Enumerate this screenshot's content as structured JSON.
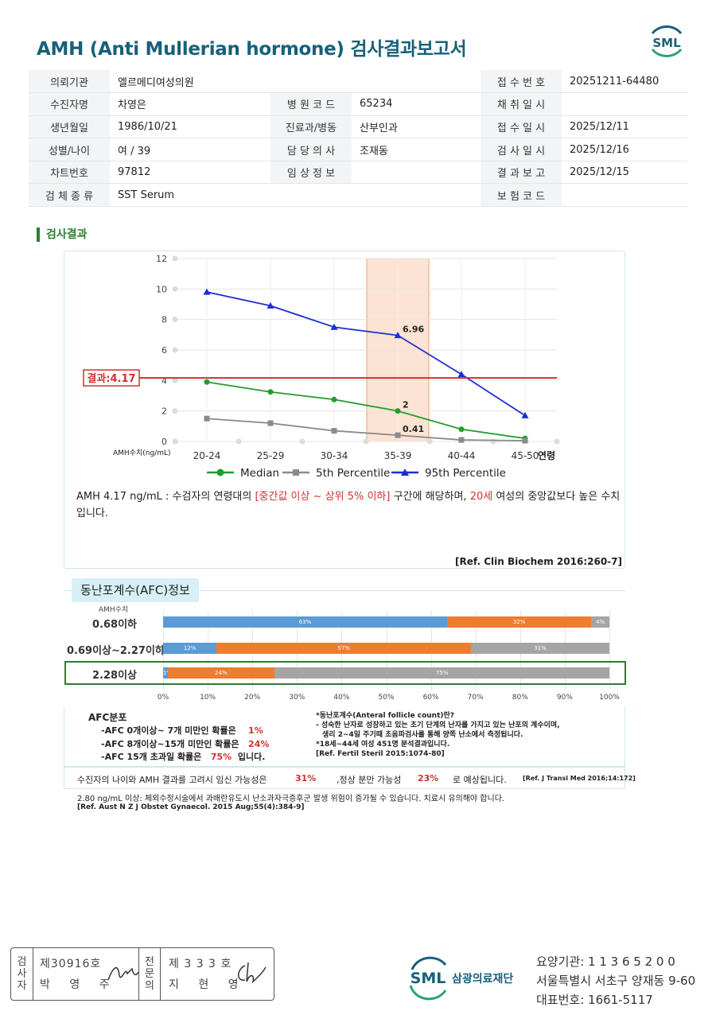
{
  "title": "AMH (Anti Mullerian hormone) 검사결과보고서",
  "logo_text": "SML",
  "info_rows": [
    [
      {
        "label": "의뢰기관",
        "value": "엘르메디여성의원",
        "span": true
      },
      {
        "label": "접 수 번 호",
        "value": "20251211-64480"
      }
    ],
    [
      {
        "label": "수진자명",
        "value": "차영은"
      },
      {
        "label": "병 원 코 드",
        "value": "65234"
      },
      {
        "label": "채 취 일 시",
        "value": ""
      }
    ],
    [
      {
        "label": "생년월일",
        "value": "1986/10/21"
      },
      {
        "label": "진료과/병동",
        "value": "산부인과"
      },
      {
        "label": "접 수 일 시",
        "value": "2025/12/11"
      }
    ],
    [
      {
        "label": "성별/나이",
        "value": "여 / 39"
      },
      {
        "label": "담 당 의 사",
        "value": "조재동"
      },
      {
        "label": "검 사 일 시",
        "value": "2025/12/16"
      }
    ],
    [
      {
        "label": "차트번호",
        "value": "97812"
      },
      {
        "label": "임 상 정 보",
        "value": ""
      },
      {
        "label": "결 과 보 고",
        "value": "2025/12/15"
      }
    ],
    [
      {
        "label": "검 체 종 류",
        "value": "SST Serum",
        "span": true
      },
      {
        "label": "보 험 코 드",
        "value": ""
      }
    ]
  ],
  "section_title": "검사결과",
  "chart_data": [
    {
      "type": "line",
      "categories": [
        "20-24",
        "25-29",
        "30-34",
        "35-39",
        "40-44",
        "45-50"
      ],
      "x_unit_label": "연령",
      "ylabel": "AMH수치(ng/mL)",
      "ylim": [
        0,
        12
      ],
      "yticks": [
        0,
        2,
        4,
        6,
        8,
        10,
        12
      ],
      "highlight_category": "35-39",
      "result_line": {
        "label": "결과:4.17",
        "value": 4.17,
        "color": "#d32f2f"
      },
      "series": [
        {
          "name": "Median",
          "values": [
            3.9,
            3.25,
            2.75,
            2.0,
            0.8,
            0.2
          ],
          "color": "#1e9e2e",
          "marker": "circle"
        },
        {
          "name": "5th Percentile",
          "values": [
            1.5,
            1.2,
            0.7,
            0.41,
            0.1,
            0.05
          ],
          "color": "#8a8a8a",
          "marker": "square"
        },
        {
          "name": "95th Percentile",
          "values": [
            9.8,
            8.9,
            7.5,
            6.96,
            4.4,
            1.7
          ],
          "color": "#1c2fd1",
          "marker": "triangle"
        }
      ],
      "data_labels": [
        {
          "series": 2,
          "index": 3,
          "text": "6.96"
        },
        {
          "series": 0,
          "index": 3,
          "text": "2"
        },
        {
          "series": 1,
          "index": 3,
          "text": "0.41"
        }
      ],
      "legend_position": "bottom",
      "grid": true
    },
    {
      "type": "bar",
      "orientation": "horizontal-stacked",
      "categories": [
        "0.68이하",
        "0.69이상~2.27이하",
        "2.28이상"
      ],
      "series": [
        {
          "values": [
            63,
            12,
            1
          ],
          "color": "#5b9bd5"
        },
        {
          "values": [
            32,
            57,
            24
          ],
          "color": "#ed7d31"
        },
        {
          "values": [
            4,
            31,
            75
          ],
          "color": "#a5a5a5"
        }
      ],
      "highlight_category": "2.28이상",
      "x_ticks": [
        "0%",
        "10%",
        "20%",
        "30%",
        "40%",
        "50%",
        "60%",
        "70%",
        "80%",
        "90%",
        "100%"
      ],
      "xlim": [
        0,
        100
      ]
    }
  ],
  "interpretation": {
    "p1": "AMH  4.17 ng/mL : 수검자의 연령대의 ",
    "red1": "[중간값 이상 ~ 상위 5% 이하]",
    "p2": "  구간에 해당하며, ",
    "red2": "20세",
    "p3": " 여성의 중앙값보다 높은 수치입니다."
  },
  "ref1": "[Ref. Clin Biochem 2016:260-7]",
  "afc": {
    "tab_label": "동난포계수(AFC)정보",
    "unit_label": "AMH수치",
    "dist_header": "AFC분포",
    "rows": [
      {
        "text": "-AFC  0개이상~ 7개 미만인 확률은",
        "value": "1%"
      },
      {
        "text": "-AFC  8개이상~15개 미만인 확률은",
        "value": "24%"
      },
      {
        "text": "-AFC  15개 초과일 확률은",
        "value": "75%",
        "suffix": "입니다."
      }
    ],
    "definition": [
      "*동난포계수(Anteral follicle count)란?",
      "- 성숙한 난자로 성장하고 있는 초기 단계의 난자를 가지고 있는 난포의 계수이며,",
      "  생리 2~4일 주기때 초음파검사를 통해 양쪽 난소에서 측정됩니다.",
      "*18세~44세 여성 451명 분석결과입니다.",
      "[Ref. Fertil Steril 2015:1074-80]"
    ]
  },
  "pregnancy": {
    "text1": "수진자의  나이와 AMH 결과를 고려시 임신 가능성은",
    "value1": "31%",
    "text2": ",정상 분만 가능성",
    "value2": "23%",
    "text3": "로 예상됩니다.",
    "ref": "[Ref. J Transl Med 2016;14:172]"
  },
  "ohss_note": "2.80  ng/mL  이상: 체외수정시술에서 과배란유도시 난소과자극증후군 발생 위험이 증가될 수 있습니다. 치료시 유의해야 합니다.",
  "ref3": "[Ref. Aust N Z J Obstet Gynaecol. 2015 Aug;55(4):384-9]",
  "signature": {
    "tag1": [
      "검",
      "사",
      "자"
    ],
    "num1": "제30916호",
    "name1": "박 영 주",
    "tag2": [
      "전",
      "문",
      "의"
    ],
    "num2": "제 3 3 3 호",
    "name2": "지 현 영"
  },
  "footer": {
    "logo_text": "SML",
    "org_name": "삼광의료재단",
    "line1": "요양기관: 1 1 3 6 5 2 0 0",
    "line2": "서울특별시 서초구 양재동 9-60",
    "line3": "대표번호: 1661-5117"
  }
}
